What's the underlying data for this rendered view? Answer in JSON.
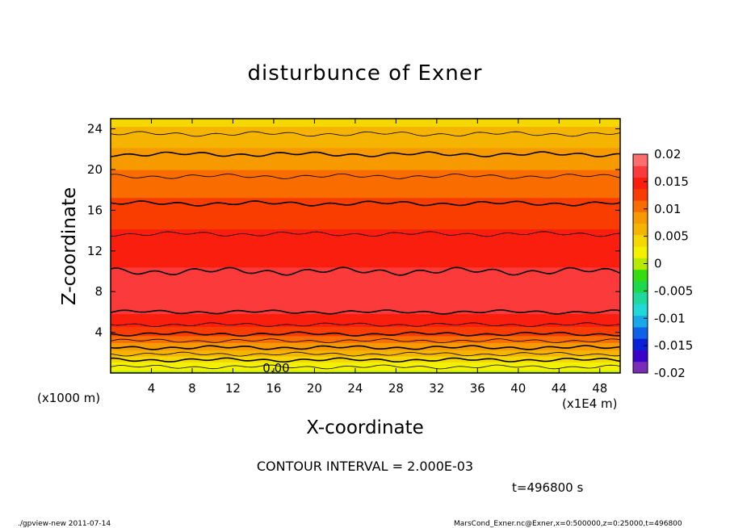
{
  "chart_data": {
    "type": "heatmap",
    "title": "disturbunce of Exner",
    "xlabel": "X-coordinate",
    "ylabel": "Z-coordinate",
    "x_unit_left": "(x1000 m)",
    "x_unit_right": "(x1E4 m)",
    "xlim": [
      0,
      50
    ],
    "ylim": [
      0,
      25
    ],
    "x_ticks": [
      4,
      8,
      12,
      16,
      20,
      24,
      28,
      32,
      36,
      40,
      44,
      48
    ],
    "y_ticks": [
      4,
      8,
      12,
      16,
      20,
      24
    ],
    "colorbar_ticks": [
      "0.02",
      "0.015",
      "0.01",
      "0.005",
      "0",
      "-0.005",
      "-0.01",
      "-0.015",
      "-0.02"
    ],
    "colorbar_range": [
      -0.02,
      0.02
    ],
    "contour_interval": "CONTOUR INTERVAL = 2.000E-03",
    "contour_label": "0.00",
    "field_profile": {
      "z": [
        0,
        1,
        2,
        3,
        4,
        5,
        6,
        7,
        8,
        9,
        10,
        12,
        14,
        16,
        18,
        20,
        22,
        24,
        25
      ],
      "value": [
        0.0005,
        0.003,
        0.0065,
        0.0095,
        0.0125,
        0.0145,
        0.016,
        0.017,
        0.0175,
        0.017,
        0.016,
        0.015,
        0.0138,
        0.0125,
        0.011,
        0.0095,
        0.0075,
        0.0055,
        0.0045
      ]
    },
    "contour_levels": [
      0.002,
      0.004,
      0.006,
      0.008,
      0.01,
      0.012,
      0.014,
      0.016
    ]
  },
  "annotations": {
    "time": "t=496800 s",
    "footer_left": "./gpview-new   2011-07-14",
    "footer_right": "MarsCond_Exner.nc@Exner,x=0:500000,z=0:25000,t=496800"
  },
  "colors": {
    "palette": [
      "#7a2cb8",
      "#3a00c8",
      "#0a20d8",
      "#0f62e8",
      "#18a7e8",
      "#21d8d8",
      "#1fd89e",
      "#1cd94c",
      "#35dd10",
      "#b6e800",
      "#f2f200",
      "#f4d800",
      "#f5b400",
      "#f79a00",
      "#f86c00",
      "#f93c00",
      "#fa1e0e",
      "#fb3b3b",
      "#fc6d6d"
    ]
  }
}
